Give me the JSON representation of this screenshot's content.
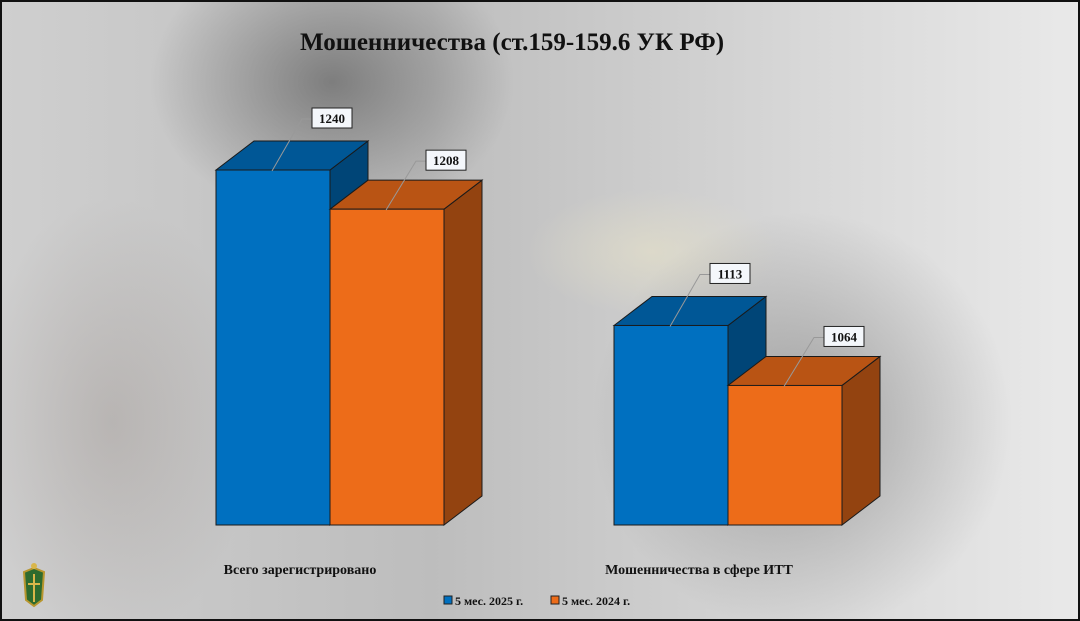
{
  "chart_data": {
    "type": "bar",
    "title": "Мошенничества (ст.159-159.6 УК РФ)",
    "categories": [
      "Всего зарегистрировано",
      "Мошенничества в сфере ИТТ"
    ],
    "series": [
      {
        "name": "5 мес. 2025 г.",
        "values": [
          1240,
          1113
        ],
        "color": "#0070C0"
      },
      {
        "name": "5 мес. 2024 г.",
        "values": [
          1208,
          1064
        ],
        "color": "#ED6C19"
      }
    ],
    "ylim": [
      950,
      1260
    ],
    "grid": false,
    "legend_position": "bottom",
    "style": "3d-column",
    "data_labels": true
  },
  "emblem": "prosecutor-office-emblem"
}
